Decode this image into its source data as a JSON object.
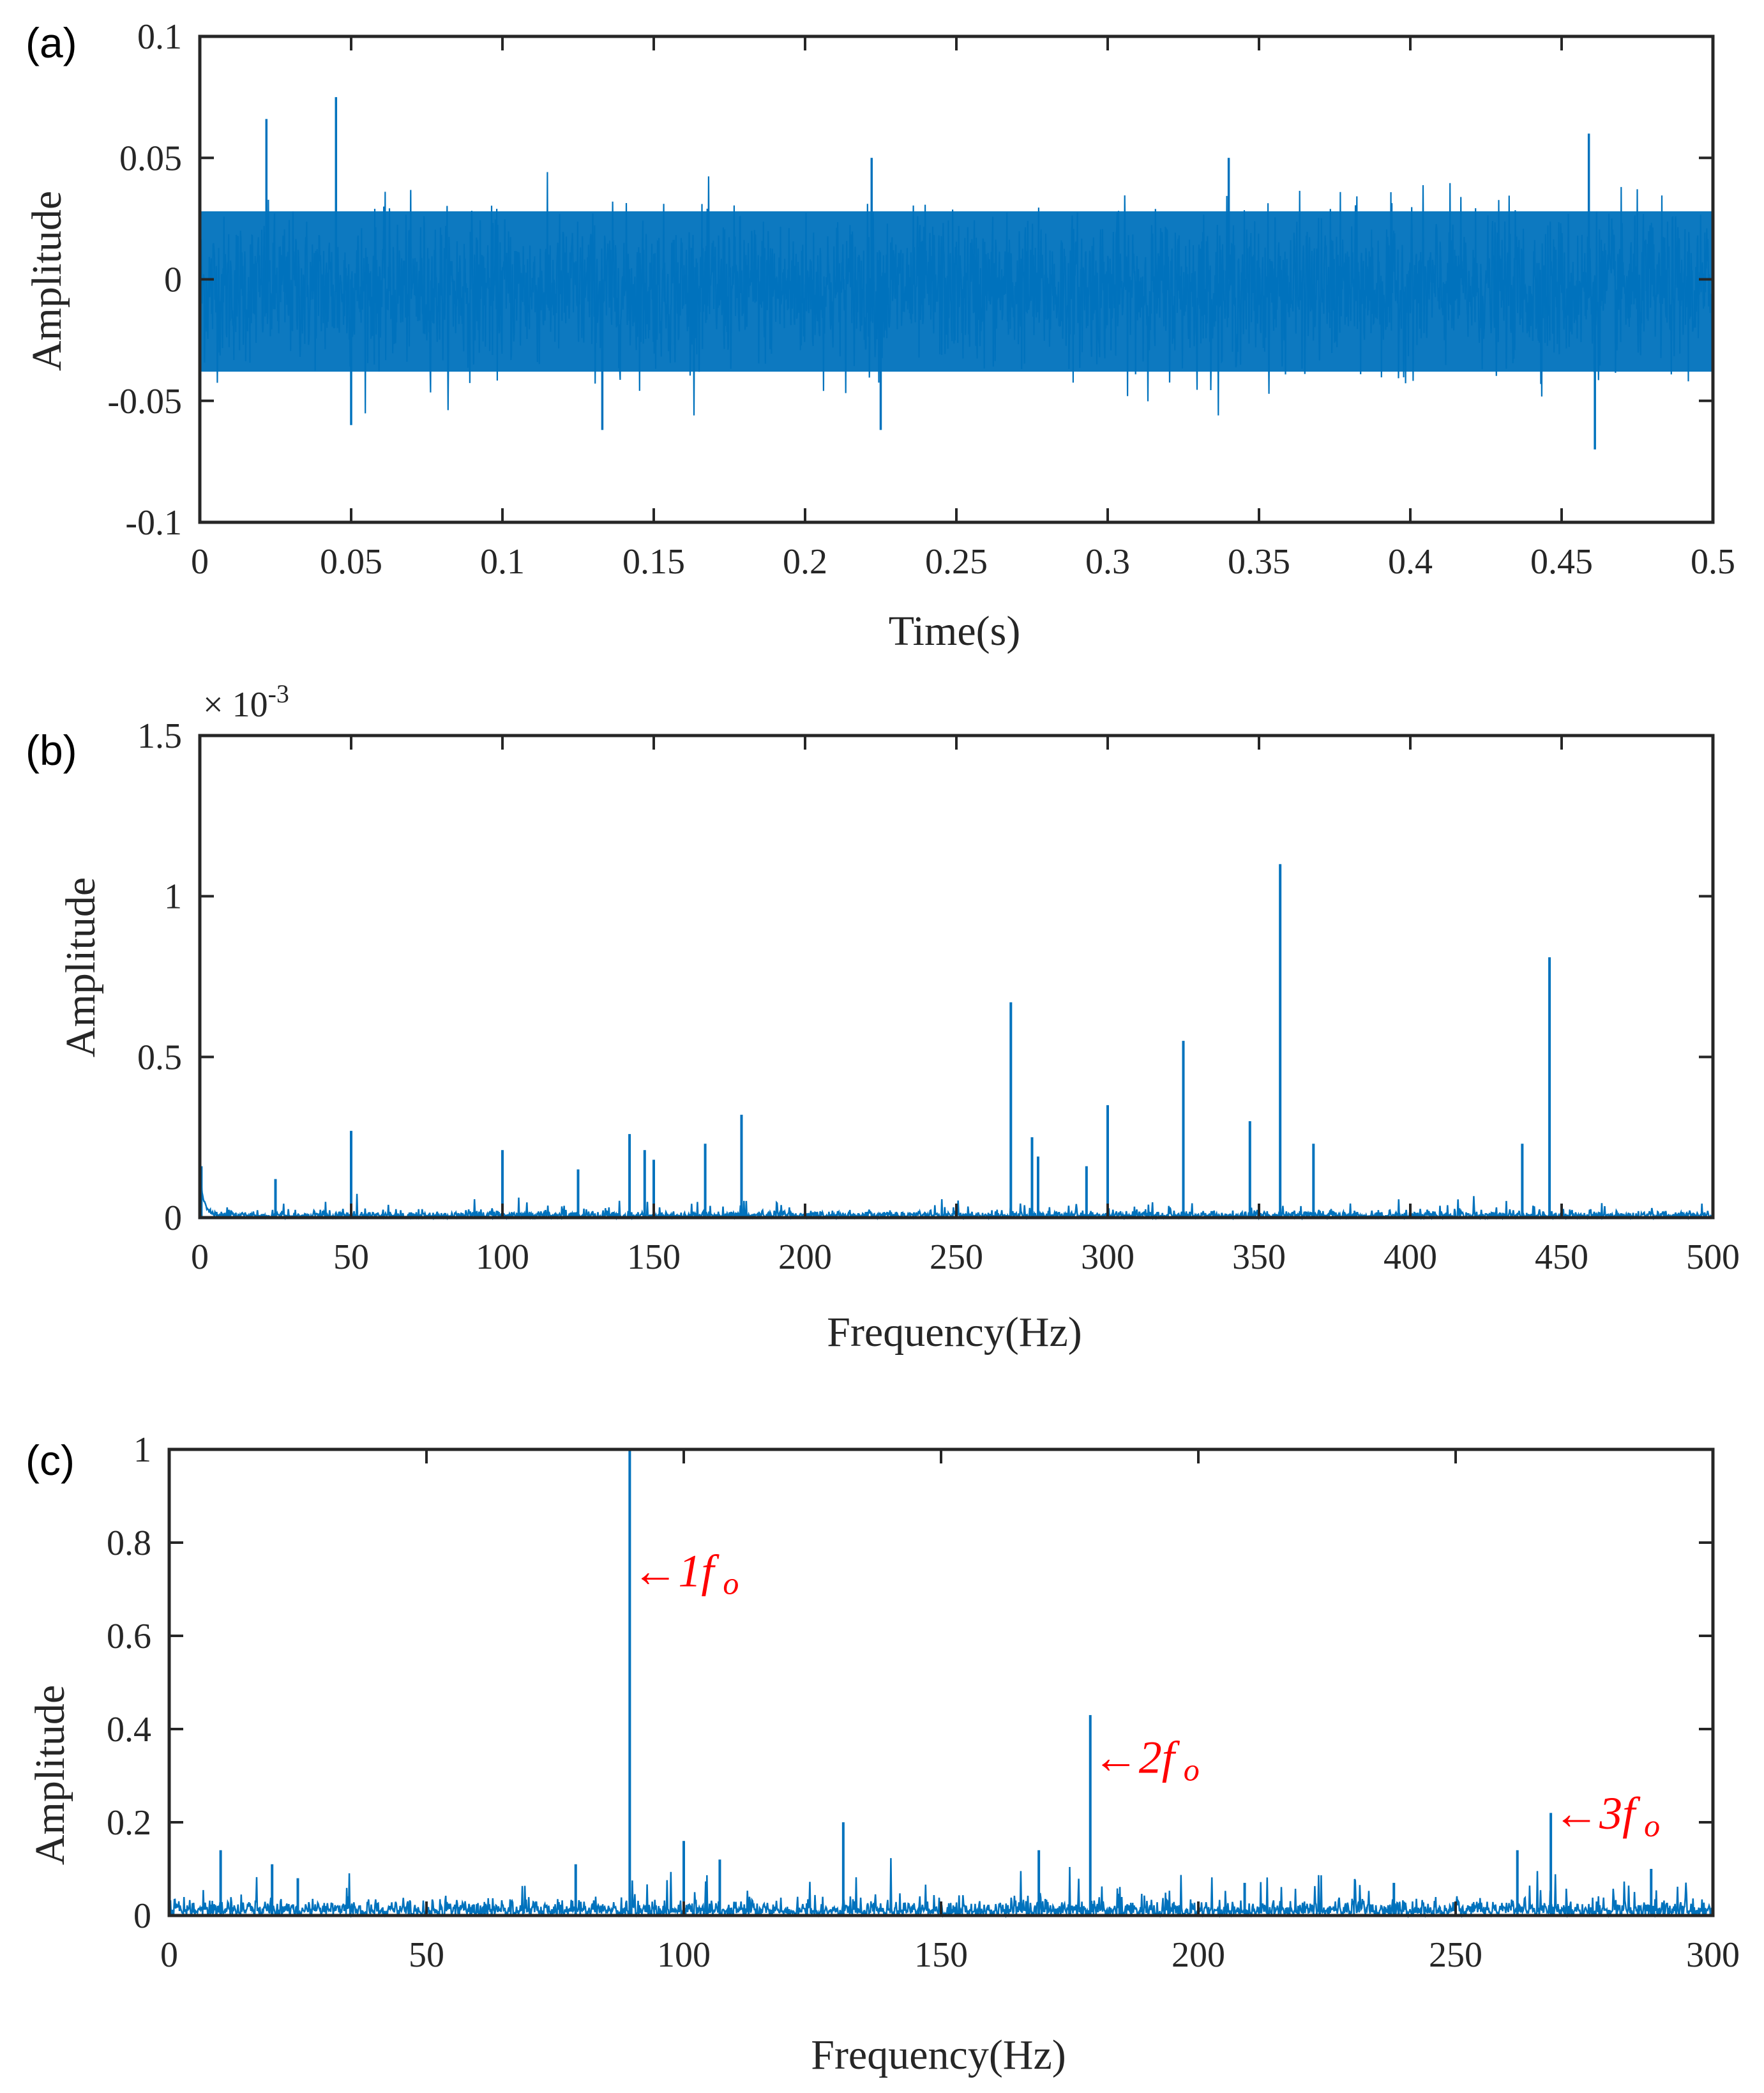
{
  "chart_data": [
    {
      "panel_label": "(a)",
      "type": "line",
      "xlabel": "Time(s)",
      "ylabel": "Amplitude",
      "xlim": [
        0,
        0.5
      ],
      "ylim": [
        -0.1,
        0.1
      ],
      "x_ticks": [
        0,
        0.05,
        0.1,
        0.15,
        0.2,
        0.25,
        0.3,
        0.35,
        0.4,
        0.45,
        0.5
      ],
      "x_tick_labels": [
        "0",
        "0.05",
        "0.1",
        "0.15",
        "0.2",
        "0.25",
        "0.3",
        "0.35",
        "0.4",
        "0.45",
        "0.5"
      ],
      "y_ticks": [
        -0.1,
        -0.05,
        0,
        0.05,
        0.1
      ],
      "y_tick_labels": [
        "-0.1",
        "-0.05",
        "0",
        "0.05",
        "0.1"
      ],
      "grid": false,
      "color": "#0072BD",
      "signal": {
        "peak_positive": 0.075,
        "peak_positive_at": 0.045,
        "peak_negative": -0.07,
        "peak_negative_at": 0.46,
        "typical_envelope": 0.035
      },
      "spikes": [
        {
          "x": 0.022,
          "y": 0.066
        },
        {
          "x": 0.045,
          "y": 0.075
        },
        {
          "x": 0.05,
          "y": -0.06
        },
        {
          "x": 0.133,
          "y": -0.062
        },
        {
          "x": 0.222,
          "y": 0.05
        },
        {
          "x": 0.225,
          "y": -0.062
        },
        {
          "x": 0.34,
          "y": 0.05
        },
        {
          "x": 0.459,
          "y": 0.06
        },
        {
          "x": 0.461,
          "y": -0.07
        }
      ]
    },
    {
      "panel_label": "(b)",
      "type": "line",
      "xlabel": "Frequency(Hz)",
      "ylabel": "Amplitude",
      "y_exponent": "× 10",
      "y_exponent_power": "-3",
      "xlim": [
        0,
        500
      ],
      "ylim": [
        0,
        1.5
      ],
      "x_ticks": [
        0,
        50,
        100,
        150,
        200,
        250,
        300,
        350,
        400,
        450,
        500
      ],
      "x_tick_labels": [
        "0",
        "50",
        "100",
        "150",
        "200",
        "250",
        "300",
        "350",
        "400",
        "450",
        "500"
      ],
      "y_ticks": [
        0,
        0.5,
        1,
        1.5
      ],
      "y_tick_labels": [
        "0",
        "0.5",
        "1",
        "1.5"
      ],
      "grid": false,
      "color": "#0072BD",
      "peaks": [
        {
          "x": 0.5,
          "y": 0.16
        },
        {
          "x": 25,
          "y": 0.12
        },
        {
          "x": 50,
          "y": 0.27
        },
        {
          "x": 100,
          "y": 0.21
        },
        {
          "x": 125,
          "y": 0.15
        },
        {
          "x": 142,
          "y": 0.26
        },
        {
          "x": 147,
          "y": 0.21
        },
        {
          "x": 150,
          "y": 0.18
        },
        {
          "x": 167,
          "y": 0.23
        },
        {
          "x": 179,
          "y": 0.32
        },
        {
          "x": 268,
          "y": 0.67
        },
        {
          "x": 275,
          "y": 0.25
        },
        {
          "x": 277,
          "y": 0.19
        },
        {
          "x": 293,
          "y": 0.16
        },
        {
          "x": 300,
          "y": 0.35
        },
        {
          "x": 325,
          "y": 0.55
        },
        {
          "x": 347,
          "y": 0.3
        },
        {
          "x": 357,
          "y": 1.1
        },
        {
          "x": 368,
          "y": 0.23
        },
        {
          "x": 437,
          "y": 0.23
        },
        {
          "x": 446,
          "y": 0.81
        }
      ]
    },
    {
      "panel_label": "(c)",
      "type": "line",
      "xlabel": "Frequency(Hz)",
      "ylabel": "Amplitude",
      "xlim": [
        0,
        300
      ],
      "ylim": [
        0,
        1
      ],
      "x_ticks": [
        0,
        50,
        100,
        150,
        200,
        250,
        300
      ],
      "x_tick_labels": [
        "0",
        "50",
        "100",
        "150",
        "200",
        "250",
        "300"
      ],
      "y_ticks": [
        0,
        0.2,
        0.4,
        0.6,
        0.8,
        1
      ],
      "y_tick_labels": [
        "0",
        "0.2",
        "0.4",
        "0.6",
        "0.8",
        "1"
      ],
      "grid": false,
      "color": "#0072BD",
      "peaks": [
        {
          "x": 10,
          "y": 0.14
        },
        {
          "x": 20,
          "y": 0.11
        },
        {
          "x": 25,
          "y": 0.08
        },
        {
          "x": 79,
          "y": 0.11
        },
        {
          "x": 89.5,
          "y": 1.0
        },
        {
          "x": 100,
          "y": 0.16
        },
        {
          "x": 107,
          "y": 0.12
        },
        {
          "x": 131,
          "y": 0.2
        },
        {
          "x": 169,
          "y": 0.14
        },
        {
          "x": 179,
          "y": 0.43
        },
        {
          "x": 209,
          "y": 0.07
        },
        {
          "x": 238,
          "y": 0.07
        },
        {
          "x": 262,
          "y": 0.14
        },
        {
          "x": 268.5,
          "y": 0.22
        },
        {
          "x": 288,
          "y": 0.1
        }
      ],
      "annotations": [
        {
          "text": "←1f",
          "sub": "o",
          "x": 89.5,
          "y": 0.72
        },
        {
          "text": "←2f",
          "sub": "o",
          "x": 179,
          "y": 0.32
        },
        {
          "text": "←3f",
          "sub": "o",
          "x": 268.5,
          "y": 0.2
        }
      ]
    }
  ]
}
